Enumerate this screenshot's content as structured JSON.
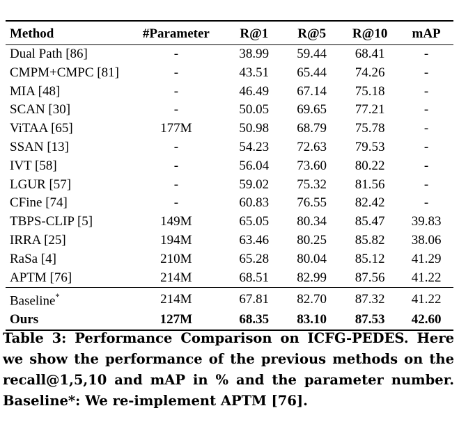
{
  "table": {
    "headers": [
      "Method",
      "#Parameter",
      "R@1",
      "R@5",
      "R@10",
      "mAP"
    ],
    "rows": [
      [
        "Dual Path [86]",
        "-",
        "38.99",
        "59.44",
        "68.41",
        "-"
      ],
      [
        "CMPM+CMPC [81]",
        "-",
        "43.51",
        "65.44",
        "74.26",
        "-"
      ],
      [
        "MIA [48]",
        "-",
        "46.49",
        "67.14",
        "75.18",
        "-"
      ],
      [
        "SCAN [30]",
        "-",
        "50.05",
        "69.65",
        "77.21",
        "-"
      ],
      [
        "ViTAA [65]",
        "177M",
        "50.98",
        "68.79",
        "75.78",
        "-"
      ],
      [
        "SSAN [13]",
        "-",
        "54.23",
        "72.63",
        "79.53",
        "-"
      ],
      [
        "IVT [58]",
        "-",
        "56.04",
        "73.60",
        "80.22",
        "-"
      ],
      [
        "LGUR [57]",
        "-",
        "59.02",
        "75.32",
        "81.56",
        "-"
      ],
      [
        "CFine [74]",
        "-",
        "60.83",
        "76.55",
        "82.42",
        "-"
      ],
      [
        "TBPS-CLIP [5]",
        "149M",
        "65.05",
        "80.34",
        "85.47",
        "39.83"
      ],
      [
        "IRRA [25]",
        "194M",
        "63.46",
        "80.25",
        "85.82",
        "38.06"
      ],
      [
        "RaSa [4]",
        "210M",
        "65.28",
        "80.04",
        "85.12",
        "41.29"
      ],
      [
        "APTM [76]",
        "214M",
        "68.51",
        "82.99",
        "87.56",
        "41.22"
      ]
    ],
    "baseline": [
      "Baseline*",
      "214M",
      "67.81",
      "82.70",
      "87.32",
      "41.22"
    ],
    "ours": [
      "Ours",
      "127M",
      "68.35",
      "83.10",
      "87.53",
      "42.60"
    ]
  },
  "caption": "Table 3: Performance Comparison on ICFG-PEDES. Here we show the performance of the previous methods on the recall@1,5,10 and mAP in % and the parameter number. Baseline*: We re-implement APTM [76]."
}
